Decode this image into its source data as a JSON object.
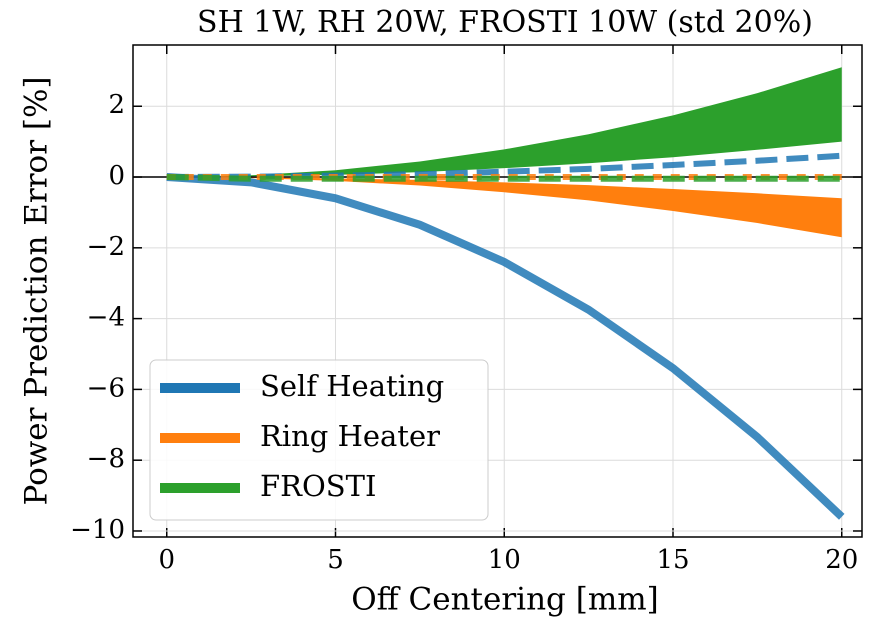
{
  "chart_data": {
    "type": "line",
    "title": "SH 1W, RH 20W, FROSTI 10W (std 20%)",
    "x_label": "Off Centering [mm]",
    "y_label": "Power Prediction Error [%]",
    "x": [
      0,
      2.5,
      5,
      7.5,
      10,
      12.5,
      15,
      17.5,
      20
    ],
    "xlim": [
      -1,
      20.6
    ],
    "ylim": [
      -10.17,
      3.73
    ],
    "xticks": [
      0,
      5,
      10,
      15,
      20
    ],
    "yticks": [
      {
        "value": -10,
        "label": "−10"
      },
      {
        "value": -8,
        "label": "−8"
      },
      {
        "value": -6,
        "label": "−6"
      },
      {
        "value": -4,
        "label": "−4"
      },
      {
        "value": -2,
        "label": "−2"
      },
      0,
      2
    ],
    "grid": true,
    "legend": "lower left",
    "series": [
      {
        "name": "Self Heating",
        "color": "#1f77b4",
        "lines": [
          {
            "style": "solid",
            "values": [
              0,
              -0.15,
              -0.6,
              -1.35,
              -2.4,
              -3.75,
              -5.4,
              -7.35,
              -9.6
            ]
          },
          {
            "style": "dashed",
            "values": [
              0,
              0.01,
              0.04,
              0.08,
              0.15,
              0.23,
              0.34,
              0.46,
              0.6
            ]
          }
        ]
      },
      {
        "name": "Ring Heater",
        "color": "#ff7f0e",
        "band": {
          "lower": [
            0,
            -0.03,
            -0.11,
            -0.24,
            -0.43,
            -0.66,
            -0.96,
            -1.3,
            -1.7
          ],
          "upper": [
            0,
            -0.01,
            -0.04,
            -0.08,
            -0.15,
            -0.23,
            -0.34,
            -0.46,
            -0.6
          ]
        },
        "lines": [
          {
            "style": "dotted",
            "values": [
              0,
              0,
              0,
              0,
              0,
              0,
              0,
              0,
              0
            ]
          }
        ]
      },
      {
        "name": "FROSTI",
        "color": "#2ca02c",
        "band": {
          "lower": [
            0,
            0.02,
            0.06,
            0.14,
            0.25,
            0.39,
            0.56,
            0.77,
            1.0
          ],
          "upper": [
            0,
            0.05,
            0.19,
            0.44,
            0.78,
            1.21,
            1.74,
            2.37,
            3.1
          ]
        },
        "lines": [
          {
            "style": "dashed",
            "values": [
              0,
              -0.05,
              -0.05,
              -0.05,
              -0.05,
              -0.05,
              -0.05,
              -0.05,
              -0.05
            ]
          }
        ]
      }
    ]
  }
}
